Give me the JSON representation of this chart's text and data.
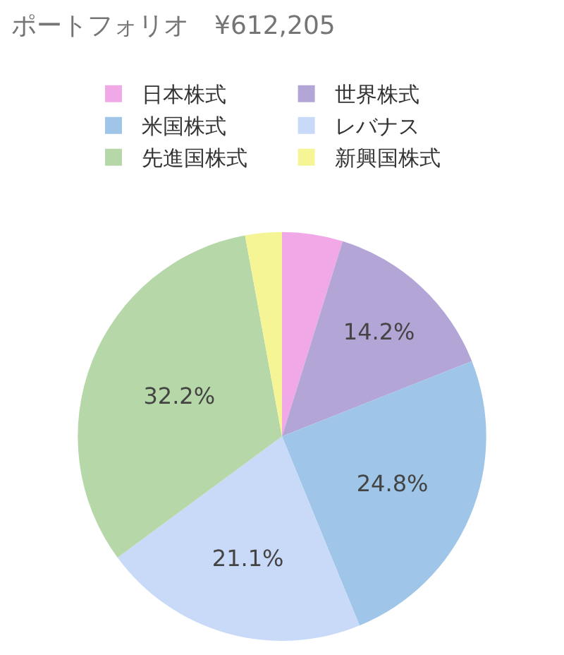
{
  "chart_data": {
    "type": "pie",
    "title": "ポートフォリオ　¥612,205",
    "categories": [
      "日本株式",
      "世界株式",
      "米国株式",
      "レバナス",
      "先進国株式",
      "新興国株式"
    ],
    "values": [
      4.8,
      14.2,
      24.8,
      21.1,
      32.2,
      2.9
    ],
    "value_labels": [
      null,
      "14.2%",
      "24.8%",
      "21.1%",
      "32.2%",
      null
    ],
    "colors": [
      "#f0a8e6",
      "#b3a6d6",
      "#9fc5e8",
      "#c9daf8",
      "#b6d7a8",
      "#f6f596"
    ],
    "legend": "top"
  }
}
